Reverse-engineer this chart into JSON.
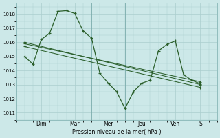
{
  "background_color": "#cce8e8",
  "grid_color": "#aacece",
  "line_color": "#2a5e2a",
  "xlabel": "Pression niveau de la mer( hPa )",
  "ylim": [
    1010.5,
    1018.8
  ],
  "yticks": [
    1011,
    1012,
    1013,
    1014,
    1015,
    1016,
    1017,
    1018
  ],
  "day_labels": [
    "Dim",
    "Mar",
    "Mer",
    "Jeu",
    "Ven",
    "S"
  ],
  "vline_positions": [
    2.0,
    4.0,
    6.0,
    8.0,
    10.0
  ],
  "label_x_positions": [
    1.0,
    3.0,
    5.0,
    7.0,
    9.0,
    10.5
  ],
  "xlim": [
    -0.5,
    11.5
  ],
  "series0_x": [
    0,
    0.5,
    1.0,
    1.5,
    2.0,
    2.5,
    3.0,
    3.5,
    4.0,
    4.5,
    5.0,
    5.5,
    6.0,
    6.5,
    7.0,
    7.5,
    8.0,
    8.5,
    9.0,
    9.5,
    10.0,
    10.5
  ],
  "series0_y": [
    1015.0,
    1014.45,
    1016.2,
    1016.65,
    1018.2,
    1018.25,
    1018.05,
    1016.8,
    1016.3,
    1013.8,
    1013.1,
    1012.5,
    1011.3,
    1012.5,
    1013.1,
    1013.3,
    1015.4,
    1015.85,
    1016.1,
    1013.7,
    1013.3,
    1013.05
  ],
  "series1_x": [
    0,
    10.5
  ],
  "series1_y": [
    1016.0,
    1013.0
  ],
  "series2_x": [
    0,
    10.5
  ],
  "series2_y": [
    1015.9,
    1013.2
  ],
  "series3_x": [
    0,
    10.5
  ],
  "series3_y": [
    1015.7,
    1012.8
  ]
}
